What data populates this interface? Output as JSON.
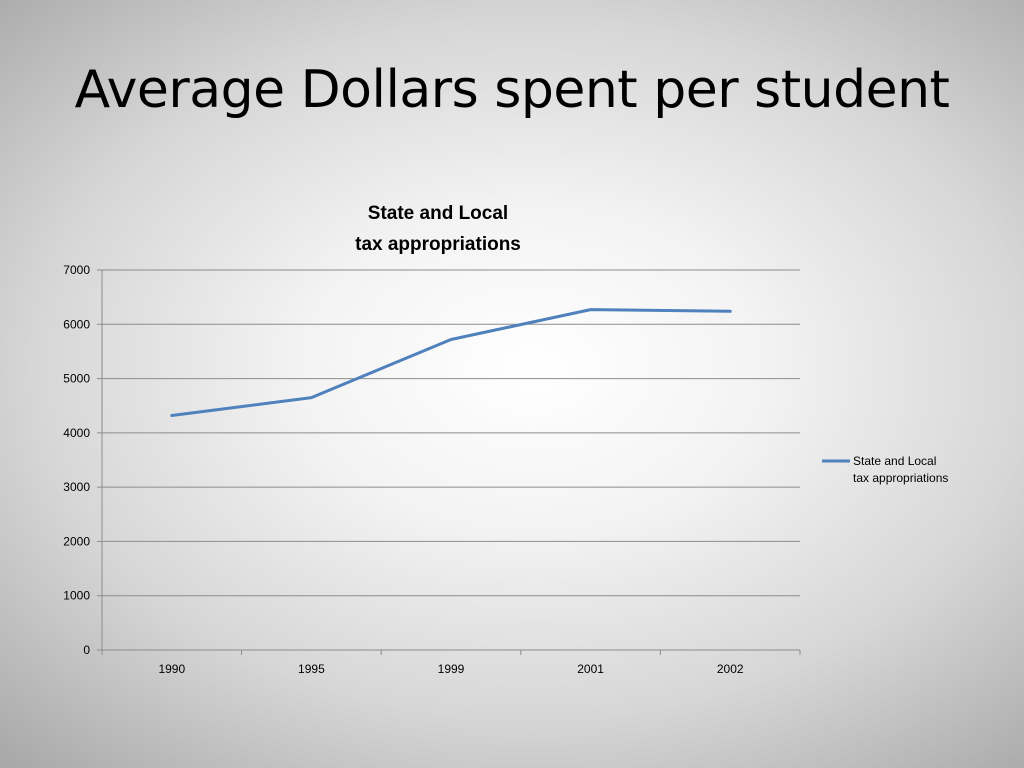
{
  "slide": {
    "title": "Average Dollars spent per student"
  },
  "chart_data": {
    "type": "line",
    "title": [
      "State and Local",
      "tax appropriations"
    ],
    "xlabel": "",
    "ylabel": "",
    "categories": [
      "1990",
      "1995",
      "1999",
      "2001",
      "2002"
    ],
    "series": [
      {
        "name": [
          "State and Local",
          "tax appropriations"
        ],
        "values": [
          4320,
          4650,
          5720,
          6270,
          6240
        ],
        "color": "#4f81bd"
      }
    ],
    "ylim": [
      0,
      7000
    ],
    "yticks": [
      "0",
      "1000",
      "2000",
      "3000",
      "4000",
      "5000",
      "6000",
      "7000"
    ],
    "grid": true,
    "legend": "right"
  }
}
